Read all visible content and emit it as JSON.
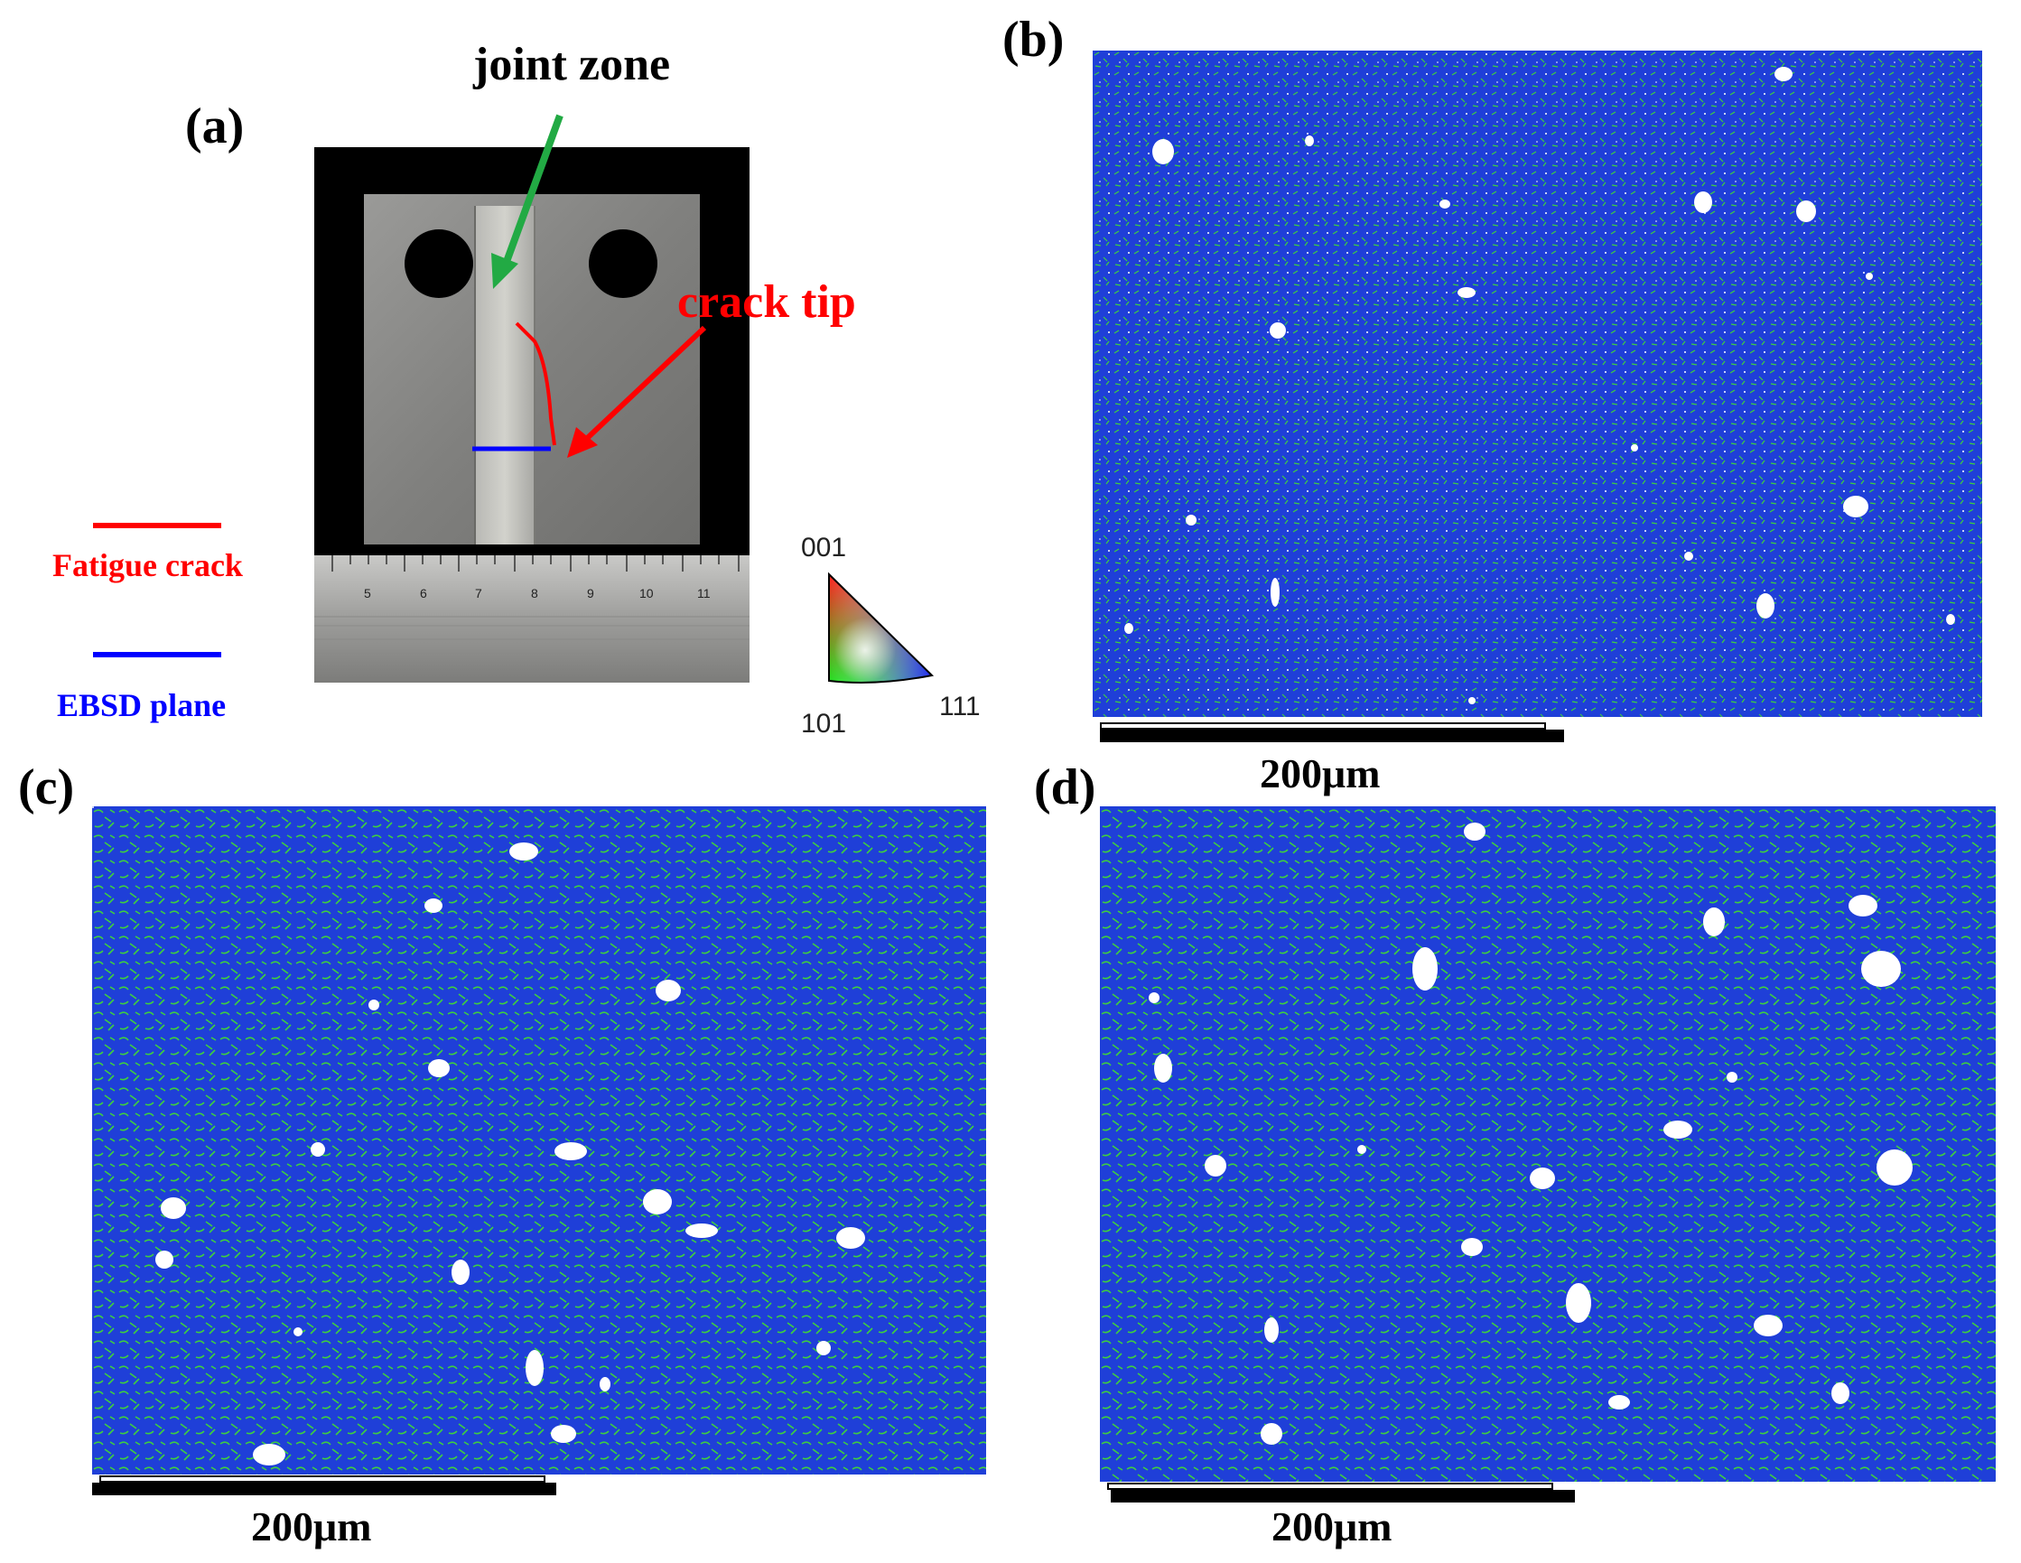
{
  "panels": {
    "a": {
      "label": "(a)",
      "annotations": {
        "joint_zone": "joint zone",
        "crack_tip": "crack tip"
      },
      "legend": {
        "fatigue_crack": "Fatigue crack",
        "ebsd_plane": "EBSD plane"
      },
      "ruler_ticks": [
        "5",
        "6",
        "7",
        "8",
        "9",
        "10",
        "11"
      ],
      "ipf_key": {
        "top": "001",
        "left": "101",
        "right": "111"
      }
    },
    "b": {
      "label": "(b)",
      "scale_bar": "200μm"
    },
    "c": {
      "label": "(c)",
      "scale_bar": "200μm"
    },
    "d": {
      "label": "(d)",
      "scale_bar": "200μm"
    }
  },
  "colors": {
    "fatigue_crack": "#ff0000",
    "ebsd_plane": "#0000ff",
    "joint_zone_arrow": "#22aa44",
    "ebsd_base": "#1f3fd8",
    "ebsd_grain_boundary": "#3ecf3e"
  }
}
